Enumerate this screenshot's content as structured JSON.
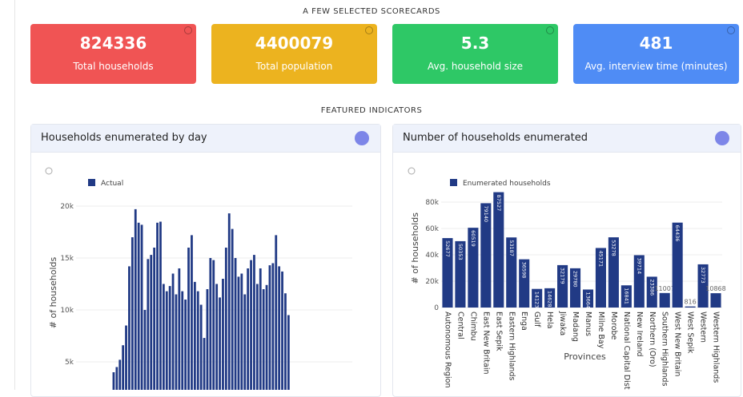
{
  "header": {
    "scorecards_title": "A FEW SELECTED SCORECARDS",
    "indicators_title": "FEATURED INDICATORS"
  },
  "scorecards": [
    {
      "value": 824336,
      "label": "Total households",
      "color": "#f05454"
    },
    {
      "value": 4400079,
      "label": "Total population",
      "color": "#ecb31f"
    },
    {
      "value": 5.3,
      "label": "Avg. household size",
      "color": "#2ec866"
    },
    {
      "value": 481,
      "label": "Avg. interview time (minutes)",
      "color": "#4f8cf5"
    }
  ],
  "chart_data": [
    {
      "type": "bar",
      "title": "Households enumerated by day",
      "ylabel": "# of households",
      "series": [
        {
          "name": "Actual",
          "color": "#213a85",
          "values": [
            4000,
            4500,
            5200,
            6600,
            8500,
            14200,
            17000,
            19700,
            18400,
            18200,
            10000,
            14900,
            15300,
            16000,
            18400,
            18500,
            12500,
            11800,
            12300,
            13500,
            11500,
            14000,
            11800,
            11000,
            16000,
            17200,
            12700,
            11800,
            10500,
            7300,
            12000,
            15000,
            14800,
            12500,
            11200,
            13000,
            16000,
            19300,
            17800,
            15000,
            13200,
            13500,
            11500,
            14000,
            14800,
            15300,
            12500,
            14000,
            12000,
            12400,
            14300,
            14500,
            17200,
            14200,
            13700,
            11600,
            9500
          ]
        }
      ],
      "ylim": [
        0,
        21000
      ],
      "yticks": [
        {
          "value": 5000,
          "label": "5k"
        },
        {
          "value": 10000,
          "label": "10k"
        },
        {
          "value": 15000,
          "label": "15k"
        },
        {
          "value": 20000,
          "label": "20k"
        }
      ],
      "grid": true
    },
    {
      "type": "bar",
      "title": "Number of households enumerated",
      "ylabel": "# of households",
      "xlabel": "Provinces",
      "categories": [
        "Autonomous Region",
        "Central",
        "Chimbu",
        "East New Britain",
        "East Sepik",
        "Eastern Highlands",
        "Enga",
        "Gulf",
        "Hela",
        "Jiwaka",
        "Madang",
        "Manus",
        "Milne Bay",
        "Morobe",
        "National Capital Distr",
        "New Ireland",
        "Northern (Oro)",
        "Southern Highlands",
        "West New Britain",
        "West Sepik",
        "Western",
        "Western Highlands"
      ],
      "series": [
        {
          "name": "Enumerated households",
          "color": "#213a85",
          "values": [
            52677,
            50353,
            60519,
            79140,
            87527,
            53187,
            36598,
            14123,
            14628,
            32179,
            29780,
            13664,
            45171,
            53278,
            16841,
            39714,
            23386,
            11007,
            64436,
            816,
            32773,
            10868
          ]
        }
      ],
      "ylim": [
        0,
        90000
      ],
      "yticks": [
        0,
        {
          "value": 20000,
          "label": "20k"
        },
        {
          "value": 40000,
          "label": "40k"
        },
        {
          "value": 60000,
          "label": "60k"
        },
        {
          "value": 80000,
          "label": "80k"
        }
      ],
      "grid": true,
      "value_labels_shown": true
    }
  ]
}
